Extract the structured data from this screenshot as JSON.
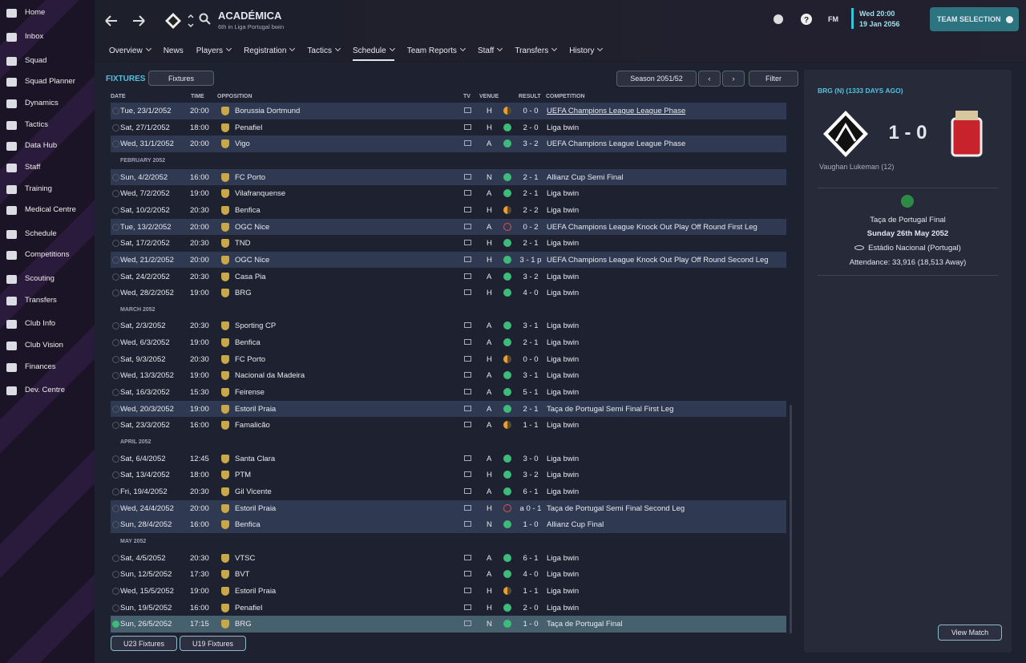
{
  "sidebar": {
    "items": [
      "Home",
      "Inbox",
      "Squad",
      "Squad Planner",
      "Dynamics",
      "Tactics",
      "Data Hub",
      "Staff",
      "Training",
      "Medical Centre",
      "Schedule",
      "Competitions",
      "Scouting",
      "Transfers",
      "Club Info",
      "Club Vision",
      "Finances",
      "Dev. Centre"
    ]
  },
  "header": {
    "title": "ACADÉMICA",
    "subtitle": "6th in Liga Portugal bwin",
    "tabs": [
      "Overview",
      "News",
      "Players",
      "Registration",
      "Tactics",
      "Schedule",
      "Team Reports",
      "Staff",
      "Transfers",
      "History"
    ],
    "logo": "FM",
    "time": "Wed 20:00",
    "date": "19 Jan 2056",
    "button": "TEAM SELECTION"
  },
  "fixtures": {
    "title": "FIXTURES",
    "view": "Fixtures",
    "season": "Season 2051/52",
    "filter": "Filter",
    "columns": [
      "DATE",
      "TIME",
      "OPPOSITION",
      "TV",
      "VENUE",
      "RESULT",
      "COMPETITION"
    ],
    "groups": [
      {
        "rows": [
          [
            "Tue, 23/1/2052",
            "20:00",
            "Borussia Dortmund",
            "H",
            "0 - 0",
            "UEFA Champions League League Phase"
          ],
          [
            "Sat, 27/1/2052",
            "18:00",
            "Penafiel",
            "H",
            "2 - 0",
            "Liga bwin"
          ],
          [
            "Wed, 31/1/2052",
            "20:00",
            "Vigo",
            "A",
            "3 - 2",
            "UEFA Champions League League Phase"
          ]
        ]
      },
      {
        "month": "FEBRUARY 2052",
        "rows": [
          [
            "Sun, 4/2/2052",
            "16:00",
            "FC Porto",
            "N",
            "2 - 1",
            "Allianz Cup Semi Final"
          ],
          [
            "Wed, 7/2/2052",
            "19:00",
            "Vilafranquense",
            "A",
            "2 - 1",
            "Liga bwin"
          ],
          [
            "Sat, 10/2/2052",
            "20:30",
            "Benfica",
            "H",
            "2 - 2",
            "Liga bwin"
          ],
          [
            "Tue, 13/2/2052",
            "20:00",
            "OGC Nice",
            "A",
            "0 - 2",
            "UEFA Champions League Knock Out Play Off Round First Leg"
          ],
          [
            "Sat, 17/2/2052",
            "20:30",
            "TND",
            "H",
            "2 - 1",
            "Liga bwin"
          ],
          [
            "Wed, 21/2/2052",
            "20:00",
            "OGC Nice",
            "H",
            "3 - 1 p",
            "UEFA Champions League Knock Out Play Off Round Second Leg"
          ],
          [
            "Sat, 24/2/2052",
            "20:30",
            "Casa Pia",
            "A",
            "3 - 2",
            "Liga bwin"
          ],
          [
            "Wed, 28/2/2052",
            "19:00",
            "BRG",
            "H",
            "4 - 0",
            "Liga bwin"
          ]
        ]
      },
      {
        "month": "MARCH 2052",
        "rows": [
          [
            "Sat, 2/3/2052",
            "20:30",
            "Sporting CP",
            "A",
            "3 - 1",
            "Liga bwin"
          ],
          [
            "Wed, 6/3/2052",
            "19:00",
            "Benfica",
            "A",
            "2 - 1",
            "Liga bwin"
          ],
          [
            "Sat, 9/3/2052",
            "20:30",
            "FC Porto",
            "H",
            "0 - 0",
            "Liga bwin"
          ],
          [
            "Wed, 13/3/2052",
            "19:00",
            "Nacional da Madeira",
            "A",
            "3 - 1",
            "Liga bwin"
          ],
          [
            "Sat, 16/3/2052",
            "15:30",
            "Feirense",
            "A",
            "5 - 1",
            "Liga bwin"
          ],
          [
            "Wed, 20/3/2052",
            "19:00",
            "Estoril Praia",
            "A",
            "2 - 1",
            "Taça de Portugal Semi Final First Leg"
          ],
          [
            "Sat, 23/3/2052",
            "16:00",
            "Famalicão",
            "A",
            "1 - 1",
            "Liga bwin"
          ]
        ]
      },
      {
        "month": "APRIL 2052",
        "rows": [
          [
            "Sat, 6/4/2052",
            "12:45",
            "Santa Clara",
            "A",
            "3 - 0",
            "Liga bwin"
          ],
          [
            "Sat, 13/4/2052",
            "18:00",
            "PTM",
            "H",
            "3 - 2",
            "Liga bwin"
          ],
          [
            "Fri, 19/4/2052",
            "20:30",
            "Gil Vicente",
            "A",
            "6 - 1",
            "Liga bwin"
          ],
          [
            "Wed, 24/4/2052",
            "20:00",
            "Estoril Praia",
            "H",
            "a 0 - 1",
            "Taça de Portugal Semi Final Second Leg"
          ],
          [
            "Sun, 28/4/2052",
            "16:00",
            "Benfica",
            "N",
            "1 - 0",
            "Allianz Cup Final"
          ]
        ]
      },
      {
        "month": "MAY 2052",
        "rows": [
          [
            "Sat, 4/5/2052",
            "20:30",
            "VTSC",
            "A",
            "6 - 1",
            "Liga bwin"
          ],
          [
            "Sun, 12/5/2052",
            "17:30",
            "BVT",
            "A",
            "4 - 0",
            "Liga bwin"
          ],
          [
            "Wed, 15/5/2052",
            "19:00",
            "Estoril Praia",
            "H",
            "1 - 1",
            "Liga bwin"
          ],
          [
            "Sun, 19/5/2052",
            "16:00",
            "Penafiel",
            "H",
            "2 - 0",
            "Liga bwin"
          ],
          [
            "Sun, 26/5/2052",
            "17:15",
            "BRG",
            "N",
            "1 - 0",
            "Taça de Portugal Final"
          ]
        ]
      }
    ],
    "buttons": [
      "U23 Fixtures",
      "U19 Fixtures"
    ]
  },
  "match": {
    "heading": "BRG (N) (1333 DAYS AGO)",
    "score": "1 - 0",
    "scorer": "Vaughan Lukeman (12)",
    "competition": "Taça de Portugal Final",
    "date": "Sunday 26th May 2052",
    "stadium": "Estádio Nacional (Portugal)",
    "attendance": "Attendance: 33,916 (18,513 Away)",
    "button": "View Match"
  }
}
